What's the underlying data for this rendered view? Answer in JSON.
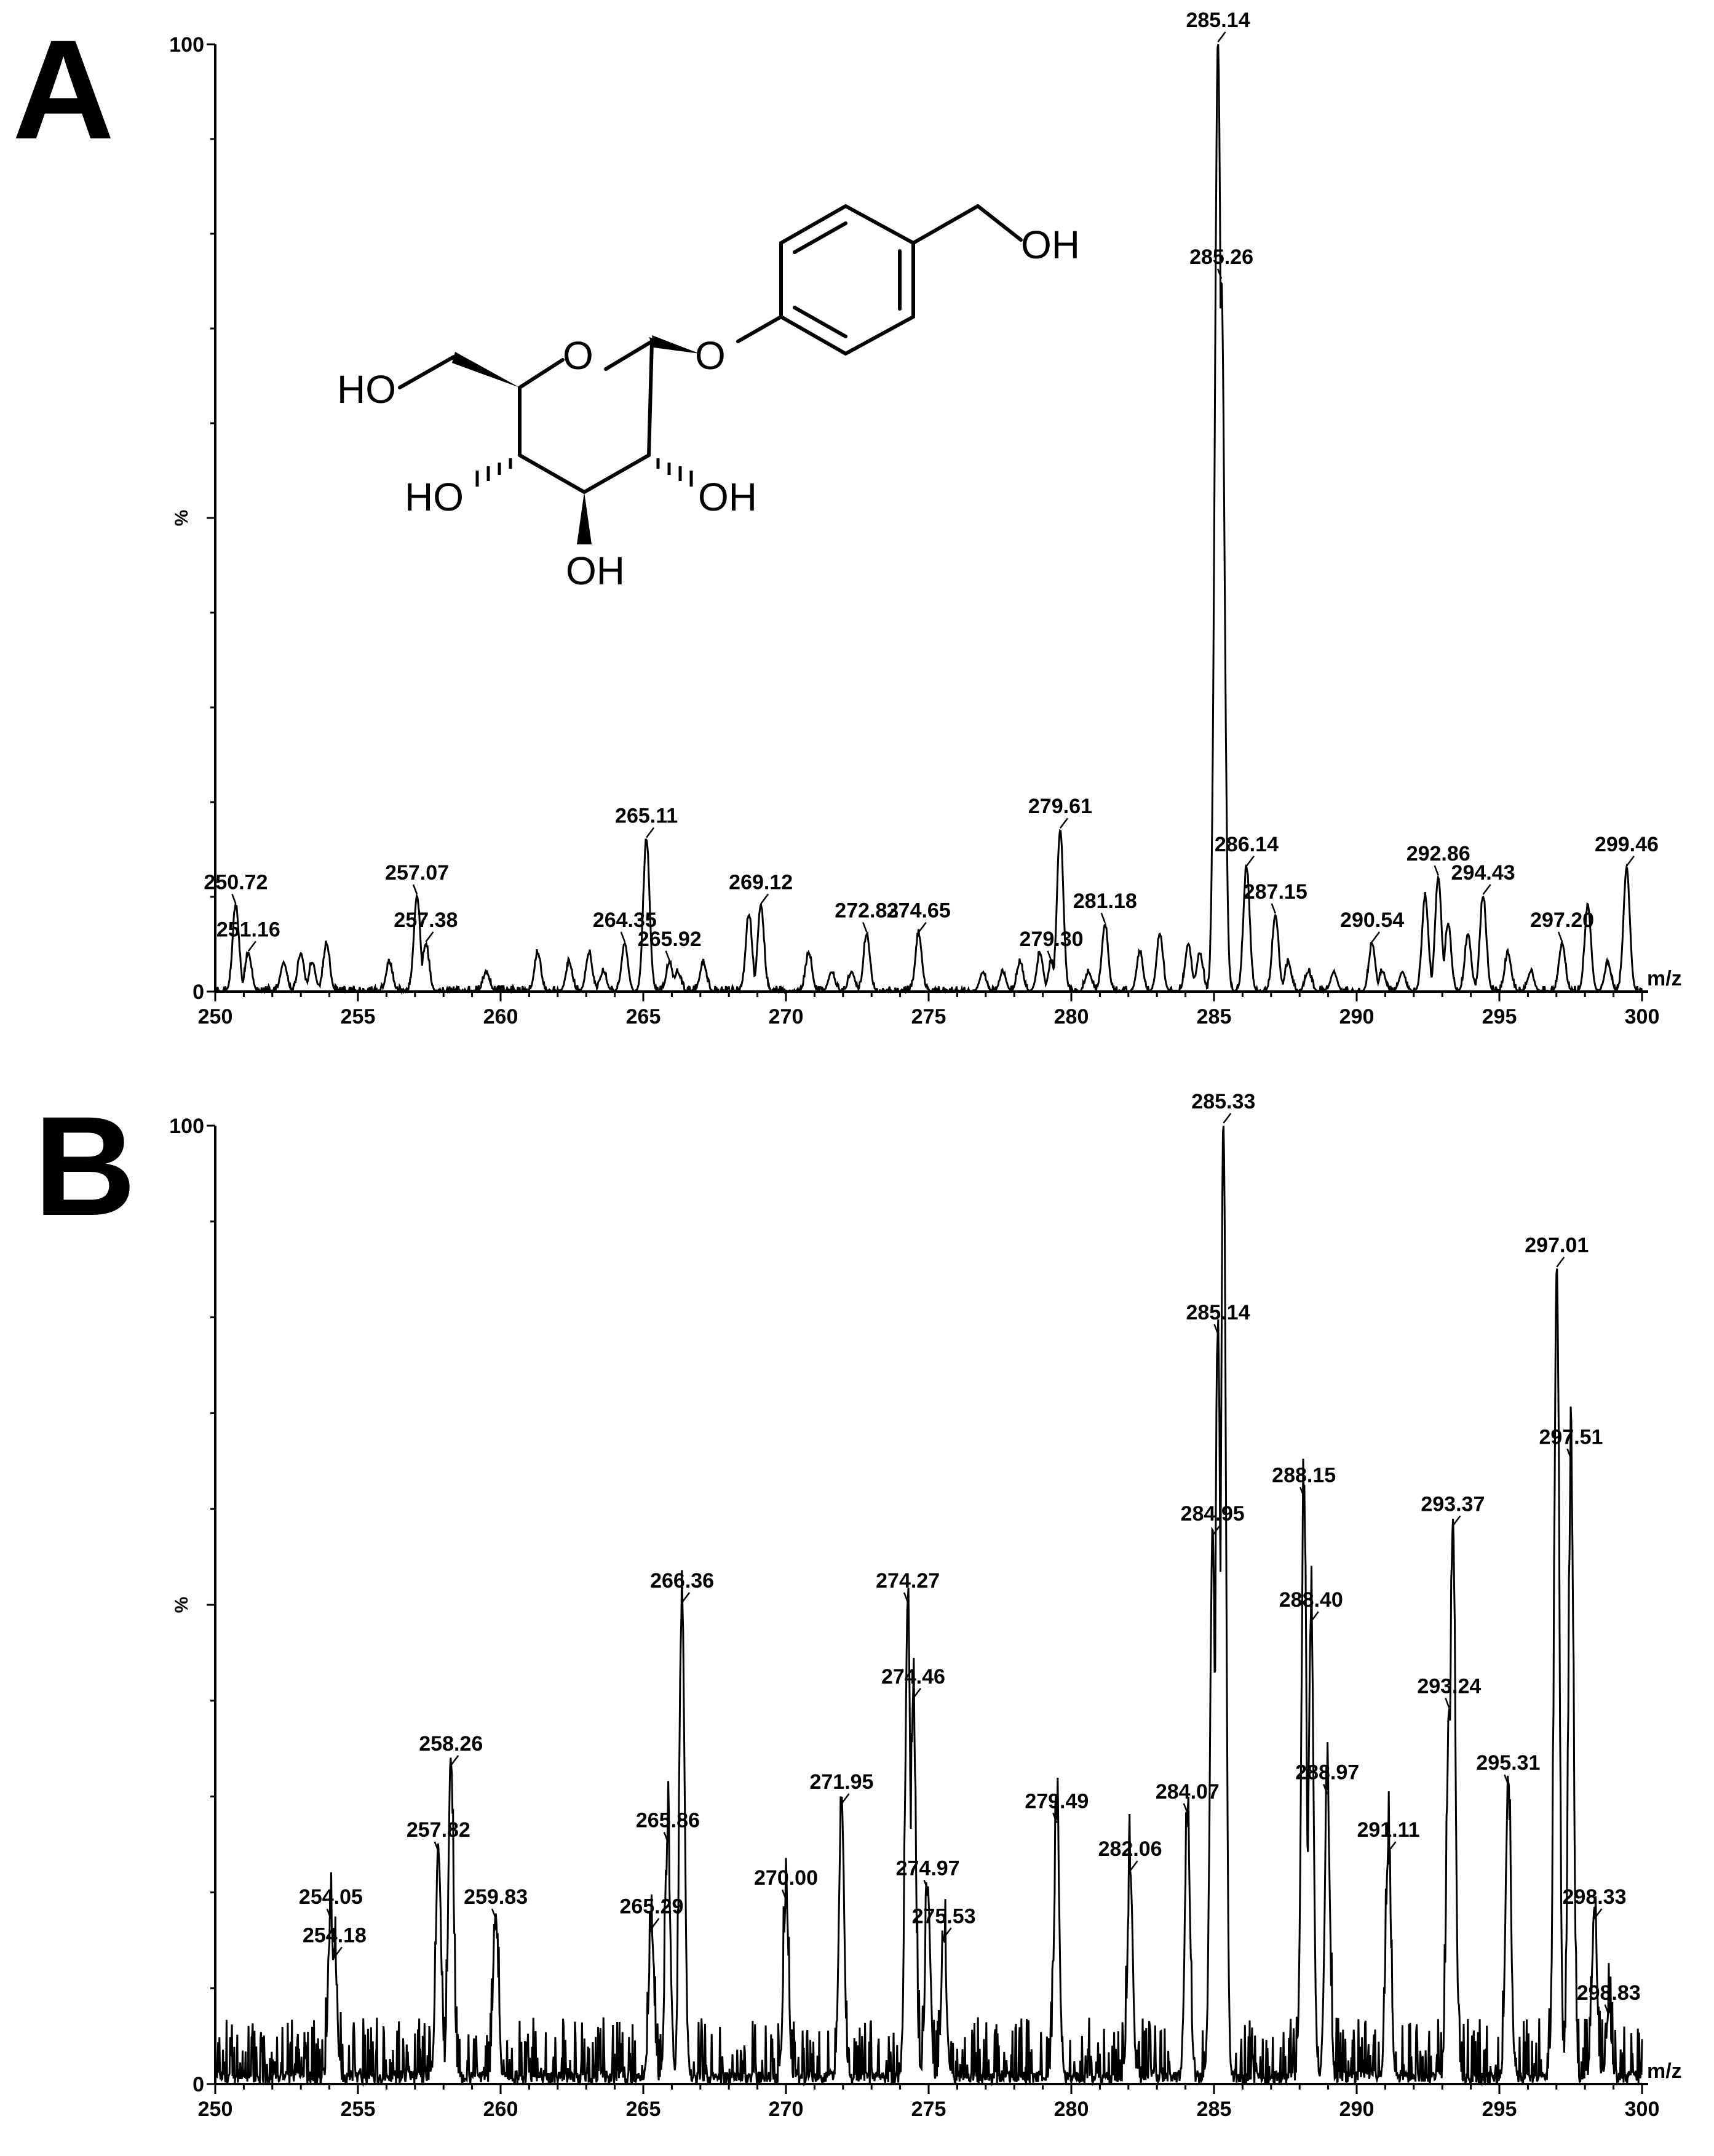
{
  "chart_data": [
    {
      "type": "line",
      "panel_label": "A",
      "title": "",
      "xlabel": "m/z",
      "ylabel": "%",
      "xlim": [
        250,
        300
      ],
      "ylim": [
        0,
        100
      ],
      "x_ticks": [
        250,
        255,
        260,
        265,
        270,
        275,
        280,
        285,
        290,
        295,
        300
      ],
      "y_tick_labels": [
        "0",
        "100"
      ],
      "peaks": [
        {
          "mz": 250.72,
          "label": "250.72",
          "intensity": 9
        },
        {
          "mz": 251.16,
          "label": "251.16",
          "intensity": 4
        },
        {
          "mz": 257.07,
          "label": "257.07",
          "intensity": 10
        },
        {
          "mz": 257.38,
          "label": "257.38",
          "intensity": 5
        },
        {
          "mz": 264.35,
          "label": "264.35",
          "intensity": 5
        },
        {
          "mz": 265.11,
          "label": "265.11",
          "intensity": 16
        },
        {
          "mz": 265.92,
          "label": "265.92",
          "intensity": 3
        },
        {
          "mz": 269.12,
          "label": "269.12",
          "intensity": 9
        },
        {
          "mz": 272.83,
          "label": "272.83",
          "intensity": 6
        },
        {
          "mz": 274.65,
          "label": "274.65",
          "intensity": 6
        },
        {
          "mz": 279.3,
          "label": "279.30",
          "intensity": 3
        },
        {
          "mz": 279.61,
          "label": "279.61",
          "intensity": 17
        },
        {
          "mz": 281.18,
          "label": "281.18",
          "intensity": 7
        },
        {
          "mz": 285.14,
          "label": "285.14",
          "intensity": 100
        },
        {
          "mz": 285.26,
          "label": "285.26",
          "intensity": 75
        },
        {
          "mz": 286.14,
          "label": "286.14",
          "intensity": 13
        },
        {
          "mz": 287.15,
          "label": "287.15",
          "intensity": 8
        },
        {
          "mz": 290.54,
          "label": "290.54",
          "intensity": 5
        },
        {
          "mz": 292.86,
          "label": "292.86",
          "intensity": 12
        },
        {
          "mz": 294.43,
          "label": "294.43",
          "intensity": 10
        },
        {
          "mz": 297.2,
          "label": "297.20",
          "intensity": 5
        },
        {
          "mz": 299.46,
          "label": "299.46",
          "intensity": 13
        }
      ],
      "minor_peaks": [
        [
          252.4,
          3
        ],
        [
          253.0,
          4
        ],
        [
          253.4,
          3
        ],
        [
          253.9,
          5
        ],
        [
          256.1,
          3
        ],
        [
          259.5,
          2
        ],
        [
          261.3,
          4
        ],
        [
          262.4,
          3
        ],
        [
          263.1,
          4
        ],
        [
          263.6,
          2
        ],
        [
          266.2,
          2
        ],
        [
          267.1,
          3
        ],
        [
          268.7,
          8
        ],
        [
          270.8,
          4
        ],
        [
          271.6,
          2
        ],
        [
          272.3,
          2
        ],
        [
          276.9,
          2
        ],
        [
          277.6,
          2
        ],
        [
          278.2,
          3
        ],
        [
          278.9,
          4
        ],
        [
          280.6,
          2
        ],
        [
          282.4,
          4
        ],
        [
          283.1,
          6
        ],
        [
          284.1,
          5
        ],
        [
          284.5,
          4
        ],
        [
          287.6,
          3
        ],
        [
          288.3,
          2
        ],
        [
          289.2,
          2
        ],
        [
          290.9,
          2
        ],
        [
          291.6,
          2
        ],
        [
          292.4,
          10
        ],
        [
          293.2,
          7
        ],
        [
          293.9,
          6
        ],
        [
          295.3,
          4
        ],
        [
          296.1,
          2
        ],
        [
          298.1,
          9
        ],
        [
          298.8,
          3
        ]
      ],
      "structure_atoms": {
        "ho_left": "HO",
        "ho_right": "OH",
        "ho_lower_left": "HO",
        "oh_lower_right": "OH",
        "oh_bottom": "OH",
        "ring_o": "O",
        "glyco_o": "O"
      }
    },
    {
      "type": "line",
      "panel_label": "B",
      "title": "",
      "xlabel": "m/z",
      "ylabel": "%",
      "xlim": [
        250,
        300
      ],
      "ylim": [
        0,
        100
      ],
      "x_ticks": [
        250,
        255,
        260,
        265,
        270,
        275,
        280,
        285,
        290,
        295,
        300
      ],
      "y_tick_labels": [
        "0",
        "100"
      ],
      "peaks": [
        {
          "mz": 254.05,
          "label": "254.05",
          "intensity": 17
        },
        {
          "mz": 254.18,
          "label": "254.18",
          "intensity": 13
        },
        {
          "mz": 257.82,
          "label": "257.82",
          "intensity": 24
        },
        {
          "mz": 258.26,
          "label": "258.26",
          "intensity": 33
        },
        {
          "mz": 259.83,
          "label": "259.83",
          "intensity": 17
        },
        {
          "mz": 265.29,
          "label": "265.29",
          "intensity": 16
        },
        {
          "mz": 265.86,
          "label": "265.86",
          "intensity": 25
        },
        {
          "mz": 266.36,
          "label": "266.36",
          "intensity": 50
        },
        {
          "mz": 270.0,
          "label": "270.00",
          "intensity": 19
        },
        {
          "mz": 271.95,
          "label": "271.95",
          "intensity": 29
        },
        {
          "mz": 274.27,
          "label": "274.27",
          "intensity": 50
        },
        {
          "mz": 274.46,
          "label": "274.46",
          "intensity": 40
        },
        {
          "mz": 274.97,
          "label": "274.97",
          "intensity": 20
        },
        {
          "mz": 275.53,
          "label": "275.53",
          "intensity": 15
        },
        {
          "mz": 279.49,
          "label": "279.49",
          "intensity": 27
        },
        {
          "mz": 282.06,
          "label": "282.06",
          "intensity": 22
        },
        {
          "mz": 284.07,
          "label": "284.07",
          "intensity": 28
        },
        {
          "mz": 284.95,
          "label": "284.95",
          "intensity": 57
        },
        {
          "mz": 285.14,
          "label": "285.14",
          "intensity": 78
        },
        {
          "mz": 285.33,
          "label": "285.33",
          "intensity": 100
        },
        {
          "mz": 288.15,
          "label": "288.15",
          "intensity": 61
        },
        {
          "mz": 288.4,
          "label": "288.40",
          "intensity": 48
        },
        {
          "mz": 288.97,
          "label": "288.97",
          "intensity": 30
        },
        {
          "mz": 291.11,
          "label": "291.11",
          "intensity": 24
        },
        {
          "mz": 293.24,
          "label": "293.24",
          "intensity": 39
        },
        {
          "mz": 293.37,
          "label": "293.37",
          "intensity": 58
        },
        {
          "mz": 295.31,
          "label": "295.31",
          "intensity": 31
        },
        {
          "mz": 297.01,
          "label": "297.01",
          "intensity": 85
        },
        {
          "mz": 297.51,
          "label": "297.51",
          "intensity": 65
        },
        {
          "mz": 298.33,
          "label": "298.33",
          "intensity": 17
        },
        {
          "mz": 298.83,
          "label": "298.83",
          "intensity": 7
        }
      ]
    }
  ]
}
